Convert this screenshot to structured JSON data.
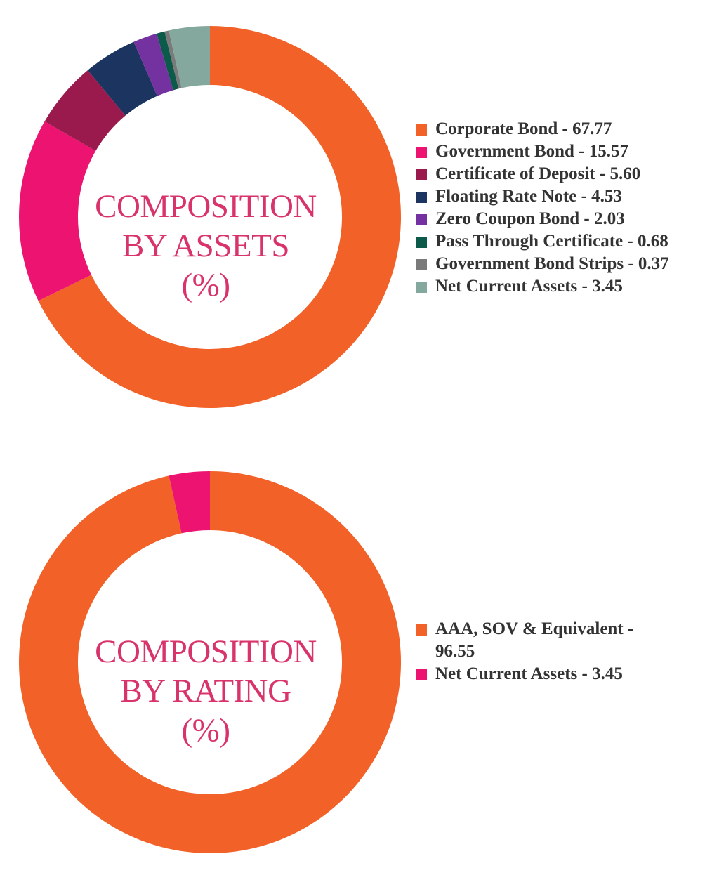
{
  "chart_data": [
    {
      "type": "pie",
      "title": "COMPOSITION BY ASSETS (%)",
      "title_lines": [
        "COMPOSITION",
        "BY ASSETS",
        "(%)"
      ],
      "donut": true,
      "slices": [
        {
          "label": "Corporate Bond",
          "value": 67.77,
          "legend_text": "Corporate Bond - 67.77",
          "color": "#f26128"
        },
        {
          "label": "Government Bond",
          "value": 15.57,
          "legend_text": "Government Bond - 15.57",
          "color": "#ec1470"
        },
        {
          "label": "Certificate of Deposit",
          "value": 5.6,
          "legend_text": "Certificate of Deposit - 5.60",
          "color": "#9b1a4e"
        },
        {
          "label": "Floating Rate Note",
          "value": 4.53,
          "legend_text": "Floating Rate Note - 4.53",
          "color": "#1b3560"
        },
        {
          "label": "Zero Coupon Bond",
          "value": 2.03,
          "legend_text": "Zero Coupon Bond - 2.03",
          "color": "#7432a0"
        },
        {
          "label": "Pass Through Certificate",
          "value": 0.68,
          "legend_text": "Pass Through Certificate - 0.68",
          "color": "#0b5a4a"
        },
        {
          "label": "Government Bond Strips",
          "value": 0.37,
          "legend_text": "Government Bond Strips - 0.37",
          "color": "#7a7a7a"
        },
        {
          "label": "Net Current Assets",
          "value": 3.45,
          "legend_text": "Net Current Assets - 3.45",
          "color": "#85a89e"
        }
      ],
      "legend_position": "right"
    },
    {
      "type": "pie",
      "title": "COMPOSITION BY RATING (%)",
      "title_lines": [
        "COMPOSITION",
        "BY RATING",
        "(%)"
      ],
      "donut": true,
      "slices": [
        {
          "label": "AAA, SOV & Equivalent",
          "value": 96.55,
          "legend_text": "AAA, SOV & Equivalent - 96.55",
          "color": "#f26128"
        },
        {
          "label": "Net Current Assets",
          "value": 3.45,
          "legend_text": "Net Current Assets - 3.45",
          "color": "#ec1470"
        }
      ],
      "legend_position": "right"
    }
  ],
  "colors": {
    "title_color": "#d9336b",
    "legend_text_color": "#333333",
    "background": "#ffffff"
  }
}
